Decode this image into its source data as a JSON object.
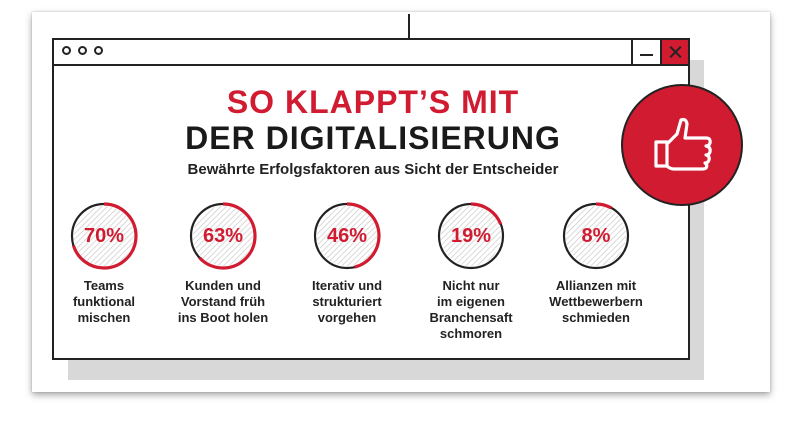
{
  "headline": {
    "line1": "SO KLAPPT’S MIT",
    "line2": "DER DIGITALISIERUNG",
    "subtitle": "Bewährte Erfolgsfaktoren aus Sicht der Entscheider"
  },
  "stats": [
    {
      "value": 70,
      "percent": "70%",
      "label_lines": [
        "Teams",
        "funktional",
        "mischen"
      ]
    },
    {
      "value": 63,
      "percent": "63%",
      "label_lines": [
        "Kunden und",
        "Vorstand früh",
        "ins Boot holen"
      ]
    },
    {
      "value": 46,
      "percent": "46%",
      "label_lines": [
        "Iterativ und",
        "strukturiert",
        "vorgehen"
      ]
    },
    {
      "value": 19,
      "percent": "19%",
      "label_lines": [
        "Nicht nur",
        "im eigenen",
        "Branchensaft",
        "schmoren"
      ]
    },
    {
      "value": 8,
      "percent": "8%",
      "label_lines": [
        "Allianzen mit",
        "Wettbewerbern",
        "schmieden"
      ]
    }
  ],
  "icons": {
    "badge": "thumbs-up-icon",
    "minimize": "minimize-icon",
    "close": "close-icon"
  },
  "colors": {
    "accent": "#d01b31",
    "text": "#1a1a1a",
    "hatch": "#c9c9c9"
  }
}
